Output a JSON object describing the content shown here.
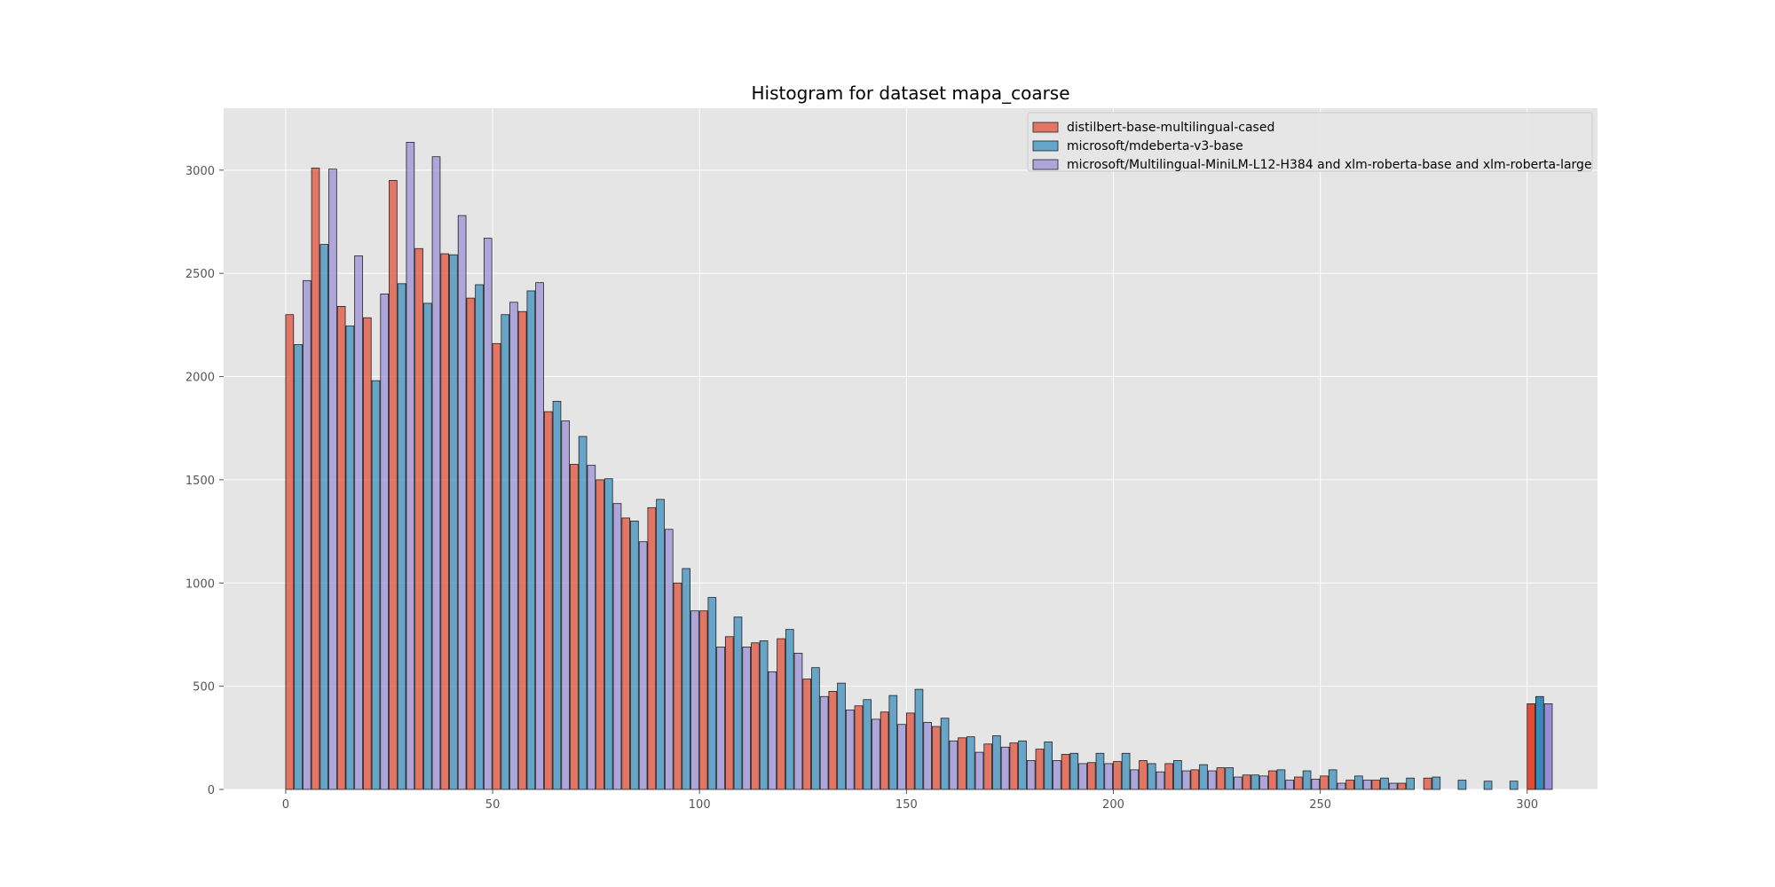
{
  "chart_data": {
    "type": "bar",
    "title": "Histogram for dataset mapa_coarse",
    "xlabel": "",
    "ylabel": "",
    "xlim": [
      -15,
      317
    ],
    "ylim": [
      0,
      3300
    ],
    "xticks": [
      0,
      50,
      100,
      150,
      200,
      250,
      300
    ],
    "yticks": [
      0,
      500,
      1000,
      1500,
      2000,
      2500,
      3000
    ],
    "grid": true,
    "legend_position": "top-right",
    "bin_width": 6.25,
    "bin_starts": [
      0,
      6.25,
      12.5,
      18.75,
      25,
      31.25,
      37.5,
      43.75,
      50,
      56.25,
      62.5,
      68.75,
      75,
      81.25,
      87.5,
      93.75,
      100,
      106.25,
      112.5,
      118.75,
      125,
      131.25,
      137.5,
      143.75,
      150,
      156.25,
      162.5,
      168.75,
      175,
      181.25,
      187.5,
      193.75,
      200,
      206.25,
      212.5,
      218.75,
      225,
      231.25,
      237.5,
      243.75,
      250,
      256.25,
      262.5,
      268.75,
      275,
      281.25,
      287.5,
      293.75
    ],
    "series": [
      {
        "name": "distilbert-base-multilingual-cased",
        "color": "#E24A33",
        "values": [
          2300,
          3010,
          2340,
          2285,
          2950,
          2620,
          2595,
          2380,
          2160,
          2315,
          1830,
          1575,
          1500,
          1315,
          1365,
          1000,
          865,
          740,
          710,
          730,
          535,
          475,
          405,
          375,
          370,
          305,
          250,
          220,
          225,
          195,
          170,
          130,
          135,
          140,
          125,
          95,
          105,
          70,
          90,
          60,
          65,
          45,
          45,
          30,
          55,
          0,
          0,
          0,
          415
        ]
      },
      {
        "name": "microsoft/mdeberta-v3-base",
        "color": "#348ABD",
        "values": [
          2155,
          2640,
          2245,
          1980,
          2450,
          2355,
          2590,
          2445,
          2300,
          2415,
          1880,
          1710,
          1505,
          1300,
          1405,
          1070,
          930,
          835,
          720,
          775,
          590,
          515,
          435,
          455,
          485,
          345,
          255,
          260,
          235,
          230,
          175,
          175,
          175,
          125,
          140,
          120,
          105,
          70,
          95,
          90,
          95,
          65,
          55,
          55,
          60,
          45,
          40,
          40,
          450
        ]
      },
      {
        "name": "microsoft/Multilingual-MiniLM-L12-H384 and xlm-roberta-base and xlm-roberta-large",
        "color": "#988ED5",
        "values": [
          2465,
          3005,
          2585,
          2400,
          3135,
          3065,
          2780,
          2670,
          2360,
          2455,
          1785,
          1570,
          1385,
          1200,
          1260,
          865,
          690,
          690,
          570,
          660,
          450,
          385,
          340,
          315,
          325,
          235,
          180,
          205,
          140,
          140,
          125,
          125,
          95,
          85,
          90,
          90,
          60,
          65,
          45,
          50,
          30,
          45,
          30,
          0,
          0,
          0,
          0,
          0,
          415
        ]
      }
    ],
    "last_bin_start": 300
  }
}
